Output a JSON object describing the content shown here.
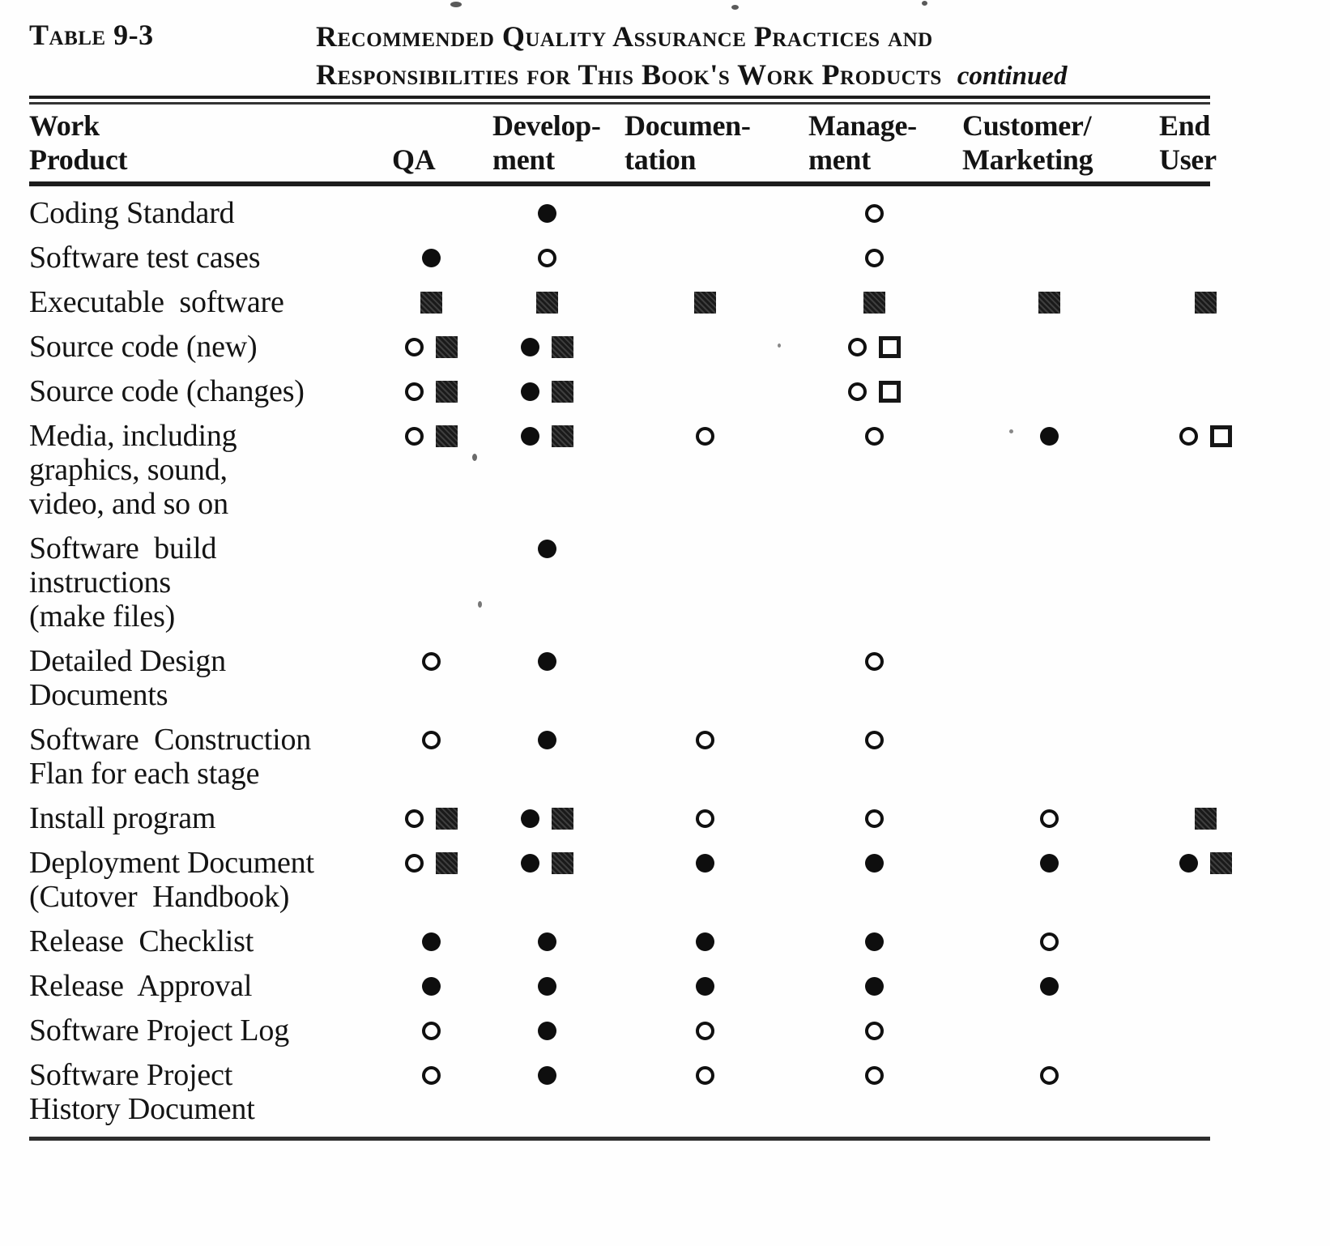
{
  "caption": {
    "label": "Table 9-3",
    "title_line1": "Recommended Quality Assurance Practices and",
    "title_line2": "Responsibilities for This Book's Work Products",
    "continued": "continued"
  },
  "table": {
    "columns": [
      {
        "line1": "Work",
        "line2": "Product"
      },
      {
        "line1": "",
        "line2": "QA"
      },
      {
        "line1": "Develop-",
        "line2": "ment"
      },
      {
        "line1": "Documen-",
        "line2": "tation"
      },
      {
        "line1": "Manage-",
        "line2": "ment"
      },
      {
        "line1": "Customer/",
        "line2": "Marketing"
      },
      {
        "line1": "End",
        "line2": "User"
      }
    ],
    "symbol_names": {
      "oc": "open-circle",
      "fc": "filled-circle",
      "fs": "filled-square",
      "os": "open-square"
    },
    "rows": [
      {
        "product_lines": [
          "Coding Standard"
        ],
        "cells": [
          [],
          [
            "fc"
          ],
          [],
          [
            "oc"
          ],
          [],
          []
        ]
      },
      {
        "product_lines": [
          "Software test cases"
        ],
        "cells": [
          [
            "fc"
          ],
          [
            "oc"
          ],
          [],
          [
            "oc"
          ],
          [],
          []
        ]
      },
      {
        "product_lines": [
          "Executable  software"
        ],
        "cells": [
          [
            "fs"
          ],
          [
            "fs"
          ],
          [
            "fs"
          ],
          [
            "fs"
          ],
          [
            "fs"
          ],
          [
            "fs"
          ]
        ]
      },
      {
        "product_lines": [
          "Source code (new)"
        ],
        "cells": [
          [
            "oc",
            "fs"
          ],
          [
            "fc",
            "fs"
          ],
          [],
          [
            "oc",
            "os"
          ],
          [],
          []
        ]
      },
      {
        "product_lines": [
          "Source code (changes)"
        ],
        "cells": [
          [
            "oc",
            "fs"
          ],
          [
            "fc",
            "fs"
          ],
          [],
          [
            "oc",
            "os"
          ],
          [],
          []
        ]
      },
      {
        "product_lines": [
          "Media, including",
          "graphics, sound,",
          "video, and so on"
        ],
        "cells": [
          [
            "oc",
            "fs"
          ],
          [
            "fc",
            "fs"
          ],
          [
            "oc"
          ],
          [
            "oc"
          ],
          [
            "fc"
          ],
          [
            "oc",
            "os"
          ]
        ]
      },
      {
        "product_lines": [
          "Software  build",
          "instructions",
          "(make files)"
        ],
        "cells": [
          [],
          [
            "fc"
          ],
          [],
          [],
          [],
          []
        ]
      },
      {
        "product_lines": [
          "Detailed Design",
          "Documents"
        ],
        "cells": [
          [
            "oc"
          ],
          [
            "fc"
          ],
          [],
          [
            "oc"
          ],
          [],
          []
        ]
      },
      {
        "product_lines": [
          "Software  Construction",
          "Flan for each stage"
        ],
        "cells": [
          [
            "oc"
          ],
          [
            "fc"
          ],
          [
            "oc"
          ],
          [
            "oc"
          ],
          [],
          []
        ]
      },
      {
        "product_lines": [
          "Install program"
        ],
        "cells": [
          [
            "oc",
            "fs"
          ],
          [
            "fc",
            "fs"
          ],
          [
            "oc"
          ],
          [
            "oc"
          ],
          [
            "oc"
          ],
          [
            "fs"
          ]
        ]
      },
      {
        "product_lines": [
          "Deployment Document",
          "(Cutover  Handbook)"
        ],
        "cells": [
          [
            "oc",
            "fs"
          ],
          [
            "fc",
            "fs"
          ],
          [
            "fc"
          ],
          [
            "fc"
          ],
          [
            "fc"
          ],
          [
            "fc",
            "fs"
          ]
        ]
      },
      {
        "product_lines": [
          "Release  Checklist"
        ],
        "cells": [
          [
            "fc"
          ],
          [
            "fc"
          ],
          [
            "fc"
          ],
          [
            "fc"
          ],
          [
            "oc"
          ],
          []
        ]
      },
      {
        "product_lines": [
          "Release  Approval"
        ],
        "cells": [
          [
            "fc"
          ],
          [
            "fc"
          ],
          [
            "fc"
          ],
          [
            "fc"
          ],
          [
            "fc"
          ],
          []
        ]
      },
      {
        "product_lines": [
          "Software Project Log"
        ],
        "cells": [
          [
            "oc"
          ],
          [
            "fc"
          ],
          [
            "oc"
          ],
          [
            "oc"
          ],
          [],
          []
        ]
      },
      {
        "product_lines": [
          "Software Project",
          "History Document"
        ],
        "cells": [
          [
            "oc"
          ],
          [
            "fc"
          ],
          [
            "oc"
          ],
          [
            "oc"
          ],
          [
            "oc"
          ],
          []
        ]
      }
    ]
  }
}
